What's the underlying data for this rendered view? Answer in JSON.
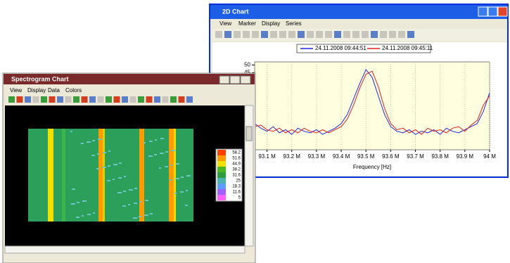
{
  "chart_window": {
    "title": "2D Chart",
    "menu": [
      "View",
      "Marker",
      "Display",
      "Series"
    ],
    "chart_data": {
      "type": "line",
      "x": [
        93.05,
        93.075,
        93.1,
        93.125,
        93.15,
        93.175,
        93.2,
        93.225,
        93.25,
        93.275,
        93.3,
        93.325,
        93.35,
        93.375,
        93.4,
        93.425,
        93.45,
        93.475,
        93.5,
        93.525,
        93.55,
        93.575,
        93.6,
        93.625,
        93.65,
        93.675,
        93.7,
        93.725,
        93.75,
        93.775,
        93.8,
        93.825,
        93.85,
        93.875,
        93.9,
        93.925,
        93.95,
        93.975,
        94.0
      ],
      "series": [
        {
          "name": "24.11.2008 09:44:51",
          "color": "#2424d8",
          "values": [
            12,
            9,
            7,
            10,
            6,
            8,
            5,
            9,
            7,
            6,
            8,
            5,
            7,
            9,
            12,
            18,
            28,
            38,
            47,
            42,
            30,
            18,
            10,
            7,
            6,
            8,
            5,
            7,
            6,
            8,
            5,
            9,
            7,
            6,
            8,
            10,
            12,
            20,
            32
          ]
        },
        {
          "name": "24.11.2008 09:45:11",
          "color": "#e02020",
          "values": [
            10,
            11,
            8,
            7,
            9,
            6,
            8,
            6,
            9,
            7,
            6,
            8,
            6,
            8,
            10,
            15,
            24,
            35,
            44,
            46,
            36,
            22,
            12,
            8,
            9,
            6,
            8,
            5,
            9,
            7,
            8,
            6,
            9,
            10,
            7,
            11,
            14,
            24,
            30
          ]
        }
      ],
      "xlim": [
        93.05,
        94.0
      ],
      "xticks": [
        {
          "value": 93.1,
          "label": "93.1 M"
        },
        {
          "value": 93.2,
          "label": "93.2 M"
        },
        {
          "value": 93.3,
          "label": "93.3 M"
        },
        {
          "value": 93.4,
          "label": "93.4 M"
        },
        {
          "value": 93.5,
          "label": "93.5 M"
        },
        {
          "value": 93.6,
          "label": "93.6 M"
        },
        {
          "value": 93.7,
          "label": "93.7 M"
        },
        {
          "value": 93.8,
          "label": "93.8 M"
        },
        {
          "value": 93.9,
          "label": "93.9 M"
        },
        {
          "value": 94.0,
          "label": "94 M"
        }
      ],
      "ylim": [
        -5,
        52
      ],
      "yticks": [
        45,
        50
      ],
      "xlabel": "Frequency [Hz]",
      "grid": true
    }
  },
  "spectrogram_window": {
    "title": "Spectrogram Chart",
    "menu": [
      "View",
      "Display",
      "Data",
      "Colors"
    ],
    "colorbar": {
      "ticks": [
        58.2,
        51.6,
        44.9,
        38.2,
        31.6,
        25,
        18.3,
        11.6,
        5
      ],
      "colors": [
        "#ff4000",
        "#ff9a00",
        "#f2e000",
        "#4cb820",
        "#2c9c3c",
        "#4cb4b0",
        "#5c9cff",
        "#a060ff",
        "#ff60ff"
      ]
    }
  }
}
